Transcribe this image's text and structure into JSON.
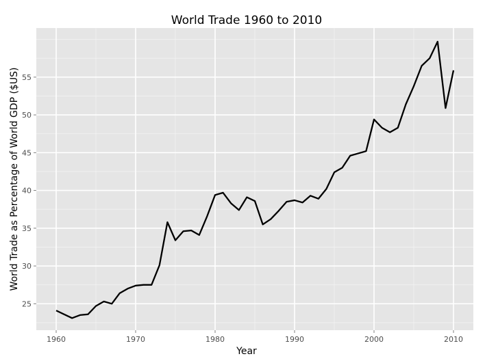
{
  "chart_data": {
    "type": "line",
    "title": "World Trade 1960 to 2010",
    "xlabel": "Year",
    "ylabel": "World Trade as Percentage of World GDP ($US)",
    "xlim": [
      1957.5,
      2012.5
    ],
    "ylim": [
      21.5,
      61.5
    ],
    "x_ticks": [
      1960,
      1970,
      1980,
      1990,
      2000,
      2010
    ],
    "y_ticks": [
      25,
      30,
      35,
      40,
      45,
      50,
      55
    ],
    "x_tick_labels": [
      "1960",
      "1970",
      "1980",
      "1990",
      "2000",
      "2010"
    ],
    "y_tick_labels": [
      "25",
      "30",
      "35",
      "40",
      "45",
      "50",
      "55"
    ],
    "grid": true,
    "legend": "none",
    "colors": {
      "panel_background": "#e5e5e5",
      "grid_major": "#ffffff",
      "grid_minor": "#f2f2f2",
      "line": "#000000"
    },
    "series": [
      {
        "x": [
          1960,
          1961,
          1962,
          1963,
          1964,
          1965,
          1966,
          1967,
          1968,
          1969,
          1970,
          1971,
          1972,
          1973,
          1974,
          1975,
          1976,
          1977,
          1978,
          1979,
          1980,
          1981,
          1982,
          1983,
          1984,
          1985,
          1986,
          1987,
          1988,
          1989,
          1990,
          1991,
          1992,
          1993,
          1994,
          1995,
          1996,
          1997,
          1998,
          1999,
          2000,
          2001,
          2002,
          2003,
          2004,
          2005,
          2006,
          2007,
          2008,
          2009,
          2010
        ],
        "values": [
          24.1,
          23.6,
          23.1,
          23.5,
          23.6,
          24.7,
          25.3,
          25.0,
          26.4,
          27.0,
          27.4,
          27.5,
          27.5,
          30.1,
          35.8,
          33.4,
          34.6,
          34.7,
          34.1,
          36.6,
          39.4,
          39.7,
          38.3,
          37.4,
          39.1,
          38.6,
          35.5,
          36.2,
          37.3,
          38.5,
          38.7,
          38.4,
          39.3,
          38.9,
          40.2,
          42.4,
          43.0,
          44.6,
          44.9,
          45.2,
          49.4,
          48.3,
          47.7,
          48.3,
          51.4,
          53.8,
          56.5,
          57.5,
          59.7,
          50.9,
          55.9
        ]
      }
    ]
  }
}
